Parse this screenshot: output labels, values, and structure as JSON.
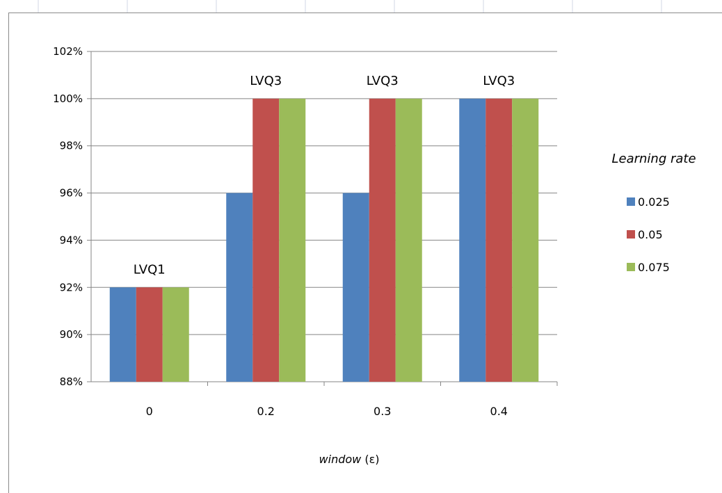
{
  "chart_data": {
    "type": "bar",
    "categories": [
      "0",
      "0.2",
      "0.3",
      "0.4"
    ],
    "series": [
      {
        "name": "0.025",
        "values": [
          92,
          96,
          96,
          100
        ],
        "color": "#4f81bd"
      },
      {
        "name": "0.05",
        "values": [
          92,
          100,
          100,
          100
        ],
        "color": "#c0504d"
      },
      {
        "name": "0.075",
        "values": [
          92,
          100,
          100,
          100
        ],
        "color": "#9bbb59"
      }
    ],
    "group_labels": [
      "LVQ1",
      "LVQ3",
      "LVQ3",
      "LVQ3"
    ],
    "title": "",
    "xlabel_italic": "window",
    "xlabel_suffix": " (ε)",
    "ylabel": "",
    "ylim": [
      88,
      102
    ],
    "yticks": [
      "88%",
      "90%",
      "92%",
      "94%",
      "96%",
      "98%",
      "100%",
      "102%"
    ],
    "y_tick_values": [
      88,
      90,
      92,
      94,
      96,
      98,
      100,
      102
    ],
    "grid": true,
    "legend_title": "Learning rate",
    "legend_position": "right"
  }
}
